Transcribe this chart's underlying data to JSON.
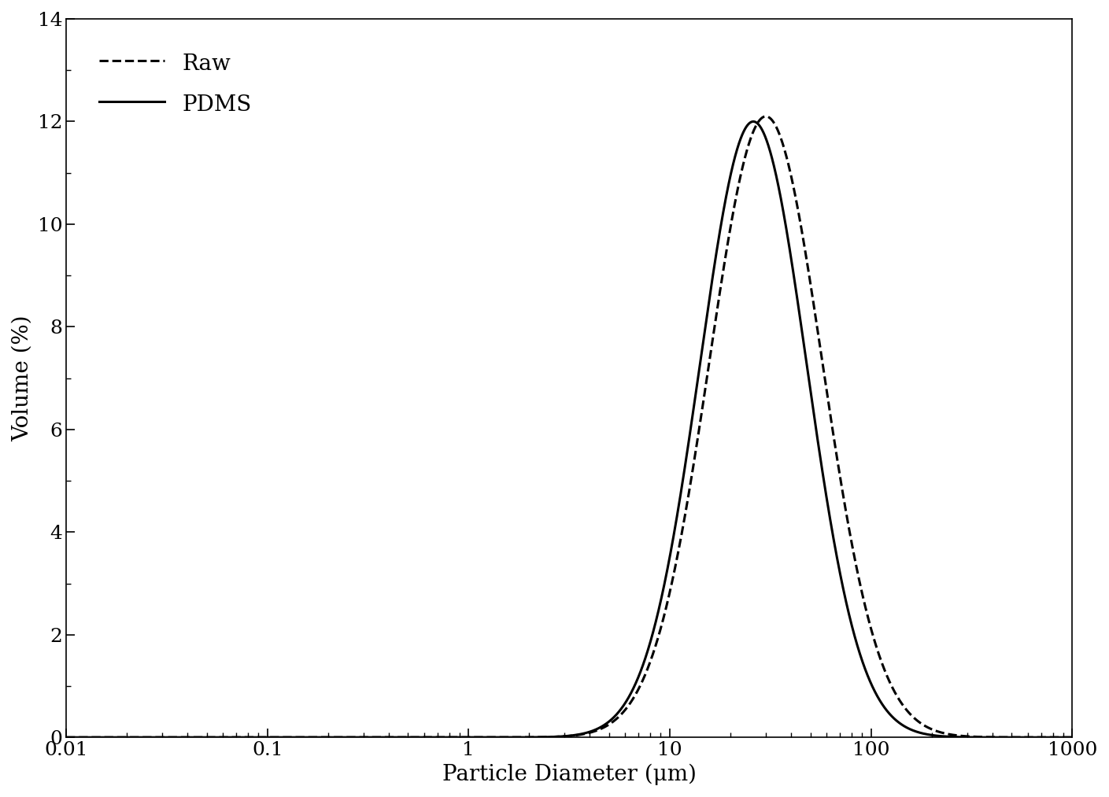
{
  "title": "",
  "xlabel": "Particle Diameter (μm)",
  "ylabel": "Volume (%)",
  "xlim_log": [
    0.01,
    1000
  ],
  "ylim": [
    0,
    14
  ],
  "yticks": [
    0,
    2,
    4,
    6,
    8,
    10,
    12,
    14
  ],
  "background_color": "#ffffff",
  "line_color": "#000000",
  "raw_peak_x": 30,
  "raw_peak_y": 12.1,
  "raw_sigma": 0.28,
  "pdms_peak_x": 26,
  "pdms_peak_y": 12.0,
  "pdms_sigma": 0.265,
  "legend_labels": [
    "Raw",
    "PDMS"
  ],
  "line_width": 2.2,
  "font_size_ticks": 18,
  "font_size_label": 20
}
